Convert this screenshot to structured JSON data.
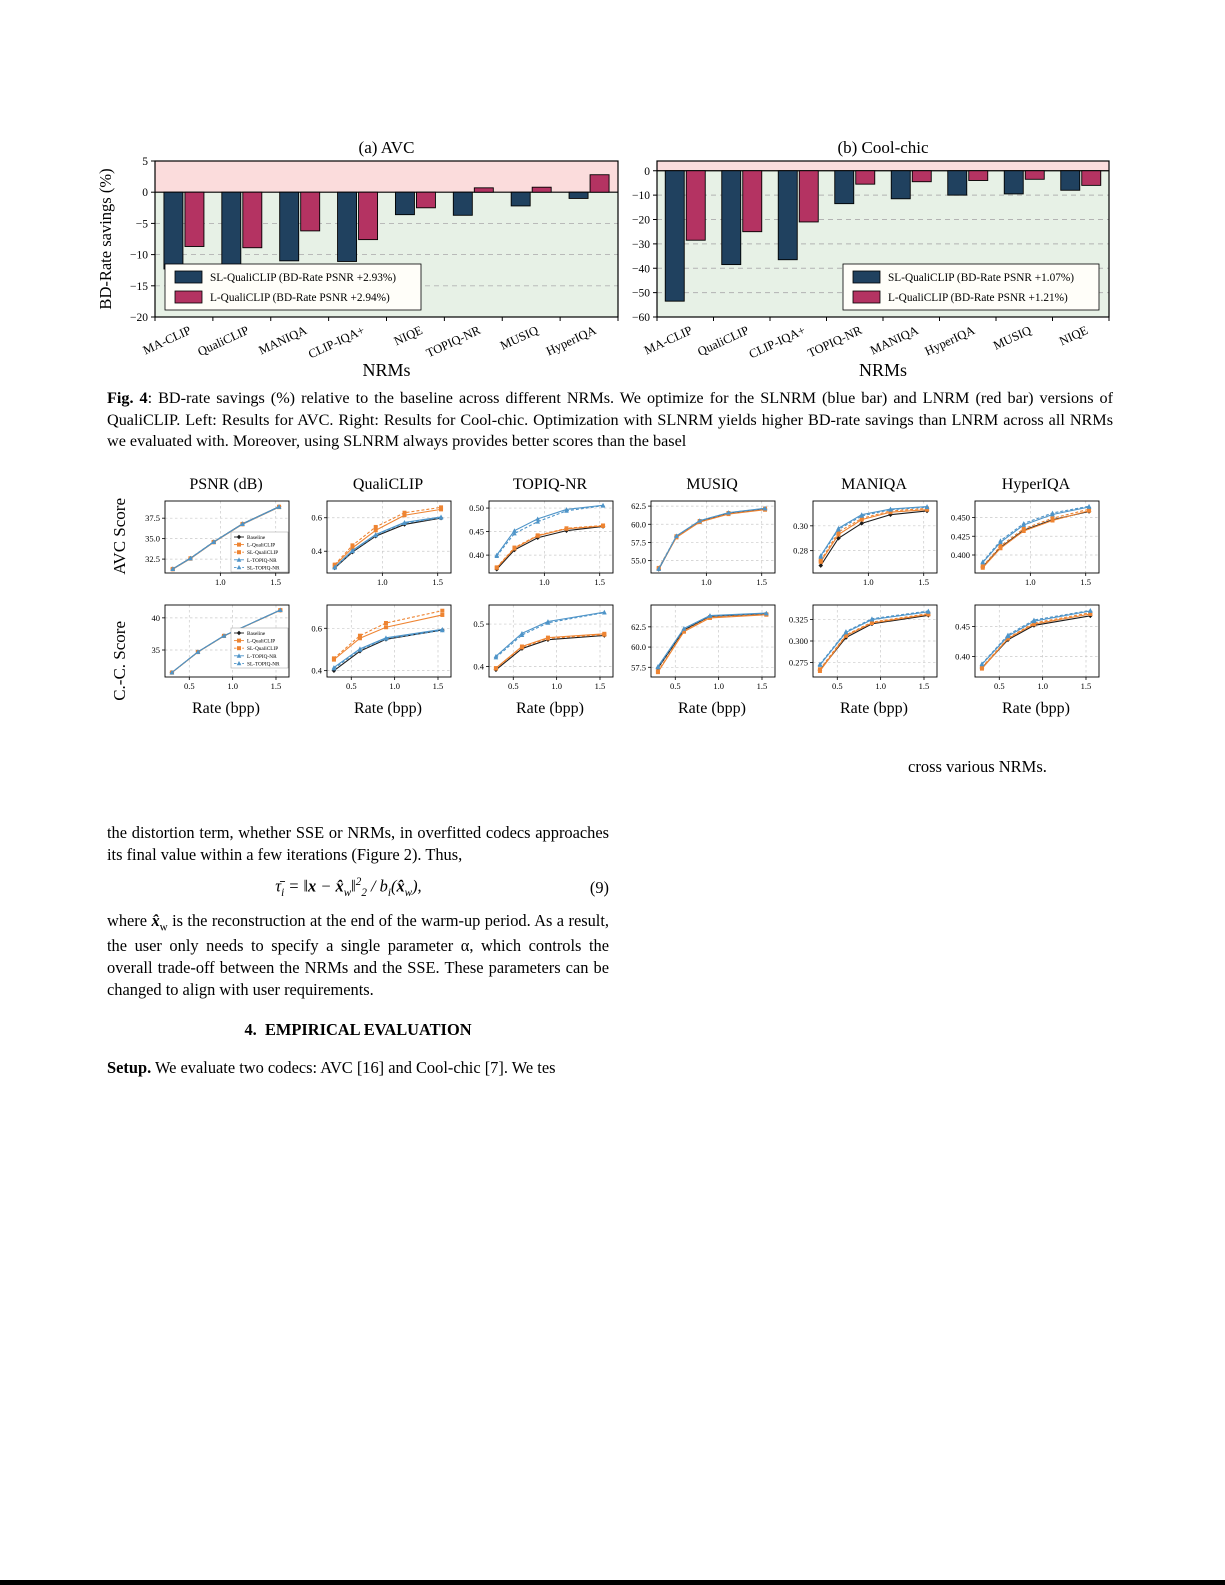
{
  "figure4": {
    "caption_bold": "Fig. 4",
    "caption_rest": ": BD-rate savings (%) relative to the baseline across different NRMs.  We optimize for the SLNRM (blue bar) and LNRM (red bar) versions of QualiCLIP. Left: Results for AVC. Right: Results for Cool-chic. Optimization with SLNRM yields higher BD-rate savings than LNRM across all NRMs we evaluated with. Moreover, using SLNRM always provides better scores than the basel"
  },
  "figure5_caption_fragment": "cross various NRMs.",
  "chart_data": [
    {
      "type": "bar",
      "title": "(a) AVC",
      "ylabel": "BD-Rate savings (%)",
      "xlabel": "NRMs",
      "ylim": [
        -20,
        5
      ],
      "yticks": [
        5,
        0,
        -5,
        -10,
        -15,
        -20
      ],
      "bg_above_zero": "#fbdcdc",
      "bg_below_zero": "#e7f1e6",
      "categories": [
        "MA-CLIP",
        "QualiCLIP",
        "MANIQA",
        "CLIP-IQA+",
        "NIQE",
        "TOPIQ-NR",
        "MUSIQ",
        "HyperIQA"
      ],
      "series": [
        {
          "name": "SL-QualiCLIP (BD-Rate PSNR +2.93%)",
          "color": "#20415f",
          "values": [
            -12.3,
            -12.0,
            -11.0,
            -11.1,
            -3.6,
            -3.7,
            -2.2,
            -1.0
          ]
        },
        {
          "name": "L-QualiCLIP (BD-Rate PSNR +2.94%)",
          "color": "#b43362",
          "values": [
            -8.7,
            -8.9,
            -6.2,
            -7.6,
            -2.5,
            0.7,
            0.8,
            2.8
          ]
        }
      ],
      "legend_pos": "lower-left"
    },
    {
      "type": "bar",
      "title": "(b) Cool-chic",
      "ylabel": "",
      "xlabel": "NRMs",
      "ylim": [
        -60,
        4
      ],
      "yticks": [
        0,
        -10,
        -20,
        -30,
        -40,
        -50,
        -60
      ],
      "bg_above_zero": "#fbdcdc",
      "bg_below_zero": "#e7f1e6",
      "categories": [
        "MA-CLIP",
        "QualiCLIP",
        "CLIP-IQA+",
        "TOPIQ-NR",
        "MANIQA",
        "HyperIQA",
        "MUSIQ",
        "NIQE"
      ],
      "series": [
        {
          "name": "SL-QualiCLIP (BD-Rate PSNR +1.07%)",
          "color": "#20415f",
          "values": [
            -53.5,
            -38.5,
            -36.5,
            -13.5,
            -11.5,
            -10.0,
            -9.5,
            -8.0
          ]
        },
        {
          "name": "L-QualiCLIP (BD-Rate PSNR +1.21%)",
          "color": "#b43362",
          "values": [
            -28.5,
            -25.0,
            -21.0,
            -5.5,
            -4.5,
            -4.0,
            -3.5,
            -6.0
          ]
        }
      ],
      "legend_pos": "lower-right"
    },
    {
      "type": "line-grid",
      "row_labels": [
        "AVC Score",
        "C.-C. Score"
      ],
      "col_titles": [
        "PSNR (dB)",
        "QualiCLIP",
        "TOPIQ-NR",
        "MUSIQ",
        "MANIQA",
        "HyperIQA"
      ],
      "xlabel": "Rate (bpp)",
      "series": [
        {
          "name": "Baseline",
          "color": "#1c1c1c",
          "dash": false,
          "marker": "diamond"
        },
        {
          "name": "L-QualiCLIP",
          "color": "#ee8432",
          "dash": false,
          "marker": "square"
        },
        {
          "name": "SL-QualiCLIP",
          "color": "#ee8432",
          "dash": true,
          "marker": "square"
        },
        {
          "name": "L-TOPIQ-NR",
          "color": "#4e94c8",
          "dash": false,
          "marker": "triangle"
        },
        {
          "name": "SL-TOPIQ-NR",
          "color": "#4e94c8",
          "dash": true,
          "marker": "triangle"
        }
      ],
      "rows": [
        {
          "x": [
            0.57,
            0.73,
            0.94,
            1.2,
            1.53
          ],
          "xlim": [
            0.5,
            1.62
          ],
          "xticks": [
            "1.0",
            "1.5"
          ],
          "panels": [
            {
              "id": "psnr",
              "ylim": [
                30.8,
                39.6
              ],
              "yticks": [
                "32.5",
                "35.0",
                "37.5"
              ],
              "legend": true,
              "series": [
                [
                  31.3,
                  32.6,
                  34.6,
                  36.8,
                  38.9
                ],
                [
                  31.25,
                  32.55,
                  34.55,
                  36.75,
                  38.85
                ],
                [
                  31.3,
                  32.6,
                  34.6,
                  36.8,
                  38.9
                ],
                [
                  31.28,
                  32.58,
                  34.58,
                  36.78,
                  38.87
                ],
                [
                  31.32,
                  32.62,
                  34.62,
                  36.82,
                  38.92
                ]
              ]
            },
            {
              "id": "qualiclip",
              "ylim": [
                0.27,
                0.7
              ],
              "yticks": [
                "0.4",
                "0.6"
              ],
              "legend": false,
              "series": [
                [
                  0.3,
                  0.395,
                  0.49,
                  0.56,
                  0.598
                ],
                [
                  0.315,
                  0.42,
                  0.525,
                  0.615,
                  0.65
                ],
                [
                  0.32,
                  0.435,
                  0.545,
                  0.63,
                  0.662
                ],
                [
                  0.305,
                  0.405,
                  0.5,
                  0.572,
                  0.605
                ],
                [
                  0.302,
                  0.4,
                  0.495,
                  0.568,
                  0.6
                ]
              ]
            },
            {
              "id": "topiq-nr",
              "ylim": [
                0.362,
                0.515
              ],
              "yticks": [
                "0.40",
                "0.45",
                "0.50"
              ],
              "legend": false,
              "series": [
                [
                  0.37,
                  0.411,
                  0.437,
                  0.452,
                  0.461
                ],
                [
                  0.373,
                  0.414,
                  0.441,
                  0.456,
                  0.462
                ],
                [
                  0.374,
                  0.416,
                  0.442,
                  0.457,
                  0.463
                ],
                [
                  0.4,
                  0.452,
                  0.477,
                  0.497,
                  0.506
                ],
                [
                  0.398,
                  0.446,
                  0.471,
                  0.494,
                  0.505
                ]
              ]
            },
            {
              "id": "musiq",
              "ylim": [
                53.3,
                63.2
              ],
              "yticks": [
                "55.0",
                "57.5",
                "60.0",
                "62.5"
              ],
              "legend": false,
              "series": [
                [
                  53.8,
                  58.3,
                  60.4,
                  61.5,
                  62.1
                ],
                [
                  53.9,
                  58.2,
                  60.3,
                  61.4,
                  62.0
                ],
                [
                  54.0,
                  58.35,
                  60.45,
                  61.55,
                  62.15
                ],
                [
                  53.85,
                  58.4,
                  60.5,
                  61.6,
                  62.2
                ],
                [
                  53.9,
                  58.38,
                  60.48,
                  61.58,
                  62.18
                ]
              ]
            },
            {
              "id": "maniqa",
              "ylim": [
                0.262,
                0.32
              ],
              "yticks": [
                "0.28",
                "0.30"
              ],
              "legend": false,
              "series": [
                [
                  0.268,
                  0.29,
                  0.302,
                  0.309,
                  0.312
                ],
                [
                  0.271,
                  0.293,
                  0.305,
                  0.311,
                  0.313
                ],
                [
                  0.272,
                  0.295,
                  0.306,
                  0.312,
                  0.314
                ],
                [
                  0.276,
                  0.298,
                  0.309,
                  0.3135,
                  0.3155
                ],
                [
                  0.275,
                  0.297,
                  0.308,
                  0.313,
                  0.315
                ]
              ]
            },
            {
              "id": "hyperiqa",
              "ylim": [
                0.376,
                0.472
              ],
              "yticks": [
                "0.400",
                "0.425",
                "0.450"
              ],
              "legend": false,
              "series": [
                [
                  0.384,
                  0.41,
                  0.433,
                  0.447,
                  0.458
                ],
                [
                  0.383,
                  0.409,
                  0.432,
                  0.446,
                  0.459
                ],
                [
                  0.385,
                  0.412,
                  0.435,
                  0.449,
                  0.461
                ],
                [
                  0.39,
                  0.417,
                  0.44,
                  0.454,
                  0.464
                ],
                [
                  0.391,
                  0.419,
                  0.442,
                  0.456,
                  0.465
                ]
              ]
            }
          ]
        },
        {
          "x": [
            0.3,
            0.6,
            0.9,
            1.55
          ],
          "xlim": [
            0.22,
            1.65
          ],
          "xticks": [
            "0.5",
            "1.0",
            "1.5"
          ],
          "panels": [
            {
              "id": "psnr",
              "ylim": [
                30.8,
                42.0
              ],
              "yticks": [
                "35",
                "40"
              ],
              "legend": true,
              "series": [
                [
                  31.5,
                  34.7,
                  37.2,
                  41.2
                ],
                [
                  31.48,
                  34.68,
                  37.18,
                  41.18
                ],
                [
                  31.5,
                  34.7,
                  37.2,
                  41.2
                ],
                [
                  31.52,
                  34.72,
                  37.22,
                  41.22
                ],
                [
                  31.5,
                  34.7,
                  37.2,
                  41.2
                ]
              ]
            },
            {
              "id": "qualiclip",
              "ylim": [
                0.37,
                0.71
              ],
              "yticks": [
                "0.4",
                "0.6"
              ],
              "legend": false,
              "series": [
                [
                  0.4,
                  0.492,
                  0.548,
                  0.592
                ],
                [
                  0.452,
                  0.553,
                  0.605,
                  0.663
                ],
                [
                  0.458,
                  0.565,
                  0.625,
                  0.683
                ],
                [
                  0.415,
                  0.503,
                  0.555,
                  0.595
                ],
                [
                  0.41,
                  0.498,
                  0.551,
                  0.59
                ]
              ]
            },
            {
              "id": "topiq-nr",
              "ylim": [
                0.375,
                0.545
              ],
              "yticks": [
                "0.4",
                "0.5"
              ],
              "legend": false,
              "series": [
                [
                  0.392,
                  0.442,
                  0.463,
                  0.473
                ],
                [
                  0.396,
                  0.447,
                  0.468,
                  0.477
                ],
                [
                  0.395,
                  0.445,
                  0.466,
                  0.475
                ],
                [
                  0.424,
                  0.478,
                  0.506,
                  0.528
                ],
                [
                  0.421,
                  0.474,
                  0.503,
                  0.527
                ]
              ]
            },
            {
              "id": "musiq",
              "ylim": [
                56.3,
                65.2
              ],
              "yticks": [
                "57.5",
                "60.0",
                "62.5"
              ],
              "legend": false,
              "series": [
                [
                  57.4,
                  62.1,
                  63.8,
                  64.1
                ],
                [
                  56.9,
                  61.9,
                  63.6,
                  64.0
                ],
                [
                  57.0,
                  62.0,
                  63.7,
                  64.05
                ],
                [
                  57.6,
                  62.3,
                  63.9,
                  64.2
                ],
                [
                  57.5,
                  62.25,
                  63.85,
                  64.15
                ]
              ]
            },
            {
              "id": "maniqa",
              "ylim": [
                0.258,
                0.342
              ],
              "yticks": [
                "0.275",
                "0.300",
                "0.325"
              ],
              "legend": false,
              "series": [
                [
                  0.266,
                  0.304,
                  0.32,
                  0.33
                ],
                [
                  0.265,
                  0.306,
                  0.321,
                  0.331
                ],
                [
                  0.267,
                  0.307,
                  0.322,
                  0.332
                ],
                [
                  0.272,
                  0.31,
                  0.325,
                  0.334
                ],
                [
                  0.273,
                  0.311,
                  0.326,
                  0.335
                ]
              ]
            },
            {
              "id": "hyperiqa",
              "ylim": [
                0.366,
                0.486
              ],
              "yticks": [
                "0.40",
                "0.45"
              ],
              "legend": false,
              "series": [
                [
                  0.381,
                  0.428,
                  0.452,
                  0.468
                ],
                [
                  0.38,
                  0.43,
                  0.454,
                  0.471
                ],
                [
                  0.382,
                  0.431,
                  0.456,
                  0.473
                ],
                [
                  0.387,
                  0.434,
                  0.459,
                  0.476
                ],
                [
                  0.388,
                  0.436,
                  0.461,
                  0.477
                ]
              ]
            }
          ]
        }
      ]
    }
  ],
  "body": {
    "p1": "the distortion term, whether SSE or NRMs, in overfitted codecs approaches its final value within a few iterations (Figure 2). Thus,",
    "eq": {
      "tau": "τ̄",
      "i1": "i",
      "mid1": " = ‖",
      "x1": "x",
      "minus": " − ",
      "xhat1": "x̂",
      "w1": "w",
      "norm": "‖",
      "sup": "2",
      "sub": "2",
      "mid2": " / b",
      "i2": "i",
      "paren1": "(",
      "xhat2": "x̂",
      "w2": "w",
      "paren2": "),",
      "num": "(9)"
    },
    "p2_pre": "where ",
    "p2_xhat": "x̂",
    "p2_xhat_sub": "w",
    "p2_rest": " is the reconstruction at the end of the warm-up period. As a result, the user only needs to specify a single parameter α, which controls the overall trade-off between the NRMs and the SSE. These parameters can be changed to align with user requirements.",
    "section_heading": "4.  EMPIRICAL EVALUATION",
    "setup_bold": "Setup.",
    "setup_rest": " We evaluate two codecs: AVC [16] and Cool-chic [7]. We tes"
  }
}
